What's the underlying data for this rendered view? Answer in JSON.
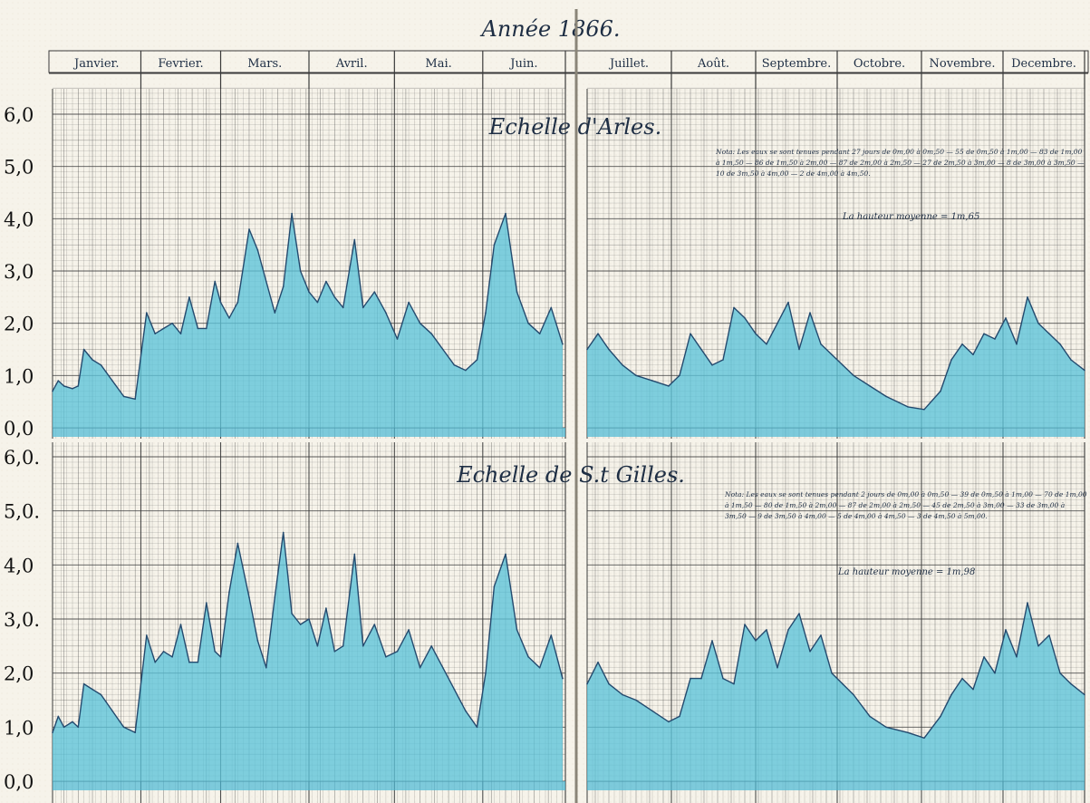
{
  "title": "Année 1866.",
  "months": [
    "Janvier.",
    "Fevrier.",
    "Mars.",
    "Avril.",
    "Mai.",
    "Juin.",
    "Juillet.",
    "Août.",
    "Septembre.",
    "Octobre.",
    "Novembre.",
    "Decembre."
  ],
  "colors": {
    "fill": "#5cc3d9",
    "line": "#244a6e",
    "grid": "#3a3a3a",
    "paper": "#f6f3ea",
    "zero_fill": "#4ab8d4"
  },
  "chart_data": [
    {
      "type": "area",
      "title": "Echelle d'Arles.",
      "y_ticks": [
        "0,0",
        "1,0",
        "2,0",
        "3,0",
        "4,0",
        "5,0",
        "6,0"
      ],
      "ylim": [
        0,
        6.6
      ],
      "x_unit": "day of year",
      "xlim": [
        1,
        365
      ],
      "x": [
        1,
        3,
        5,
        8,
        10,
        12,
        15,
        18,
        22,
        26,
        30,
        34,
        37,
        40,
        43,
        46,
        49,
        52,
        55,
        58,
        60,
        63,
        66,
        70,
        73,
        76,
        79,
        82,
        85,
        88,
        91,
        94,
        97,
        100,
        103,
        107,
        110,
        114,
        118,
        122,
        126,
        130,
        134,
        138,
        142,
        146,
        150,
        153,
        156,
        160,
        164,
        168,
        172,
        176,
        180,
        182,
        186,
        190,
        195,
        200,
        206,
        212,
        216,
        220,
        224,
        228,
        232,
        236,
        240,
        244,
        248,
        252,
        256,
        260,
        264,
        268,
        272,
        276,
        280,
        286,
        292,
        300,
        306,
        312,
        316,
        320,
        324,
        328,
        332,
        336,
        340,
        344,
        348,
        352,
        356,
        360,
        365
      ],
      "values": [
        0.7,
        0.9,
        0.8,
        0.75,
        0.8,
        1.5,
        1.3,
        1.2,
        0.9,
        0.6,
        0.55,
        2.2,
        1.8,
        1.9,
        2.0,
        1.8,
        2.5,
        1.9,
        1.9,
        2.8,
        2.4,
        2.1,
        2.4,
        3.8,
        3.4,
        2.8,
        2.2,
        2.7,
        4.1,
        3.0,
        2.6,
        2.4,
        2.8,
        2.5,
        2.3,
        3.6,
        2.3,
        2.6,
        2.2,
        1.7,
        2.4,
        2.0,
        1.8,
        1.5,
        1.2,
        1.1,
        1.3,
        2.2,
        3.5,
        4.1,
        2.6,
        2.0,
        1.8,
        2.3,
        1.6,
        1.5,
        1.8,
        1.5,
        1.2,
        1.0,
        0.9,
        0.8,
        1.0,
        1.8,
        1.5,
        1.2,
        1.3,
        2.3,
        2.1,
        1.8,
        1.6,
        2.0,
        2.4,
        1.5,
        2.2,
        1.6,
        1.4,
        1.2,
        1.0,
        0.8,
        0.6,
        0.4,
        0.35,
        0.7,
        1.3,
        1.6,
        1.4,
        1.8,
        1.7,
        2.1,
        1.6,
        2.5,
        2.0,
        1.8,
        1.6,
        1.3,
        1.1
      ]
    },
    {
      "type": "area",
      "title": "Echelle de S.t Gilles.",
      "y_ticks": [
        "0,0",
        "1,0",
        "2,0",
        "3,0.",
        "4,0",
        "5,0.",
        "6,0."
      ],
      "ylim": [
        0,
        6.6
      ],
      "x_unit": "day of year",
      "xlim": [
        1,
        365
      ],
      "x": [
        1,
        3,
        5,
        8,
        10,
        12,
        15,
        18,
        22,
        26,
        30,
        34,
        37,
        40,
        43,
        46,
        49,
        52,
        55,
        58,
        60,
        63,
        66,
        70,
        73,
        76,
        79,
        82,
        85,
        88,
        91,
        94,
        97,
        100,
        103,
        107,
        110,
        114,
        118,
        122,
        126,
        130,
        134,
        138,
        142,
        146,
        150,
        153,
        156,
        160,
        164,
        168,
        172,
        176,
        180,
        182,
        186,
        190,
        195,
        200,
        206,
        212,
        216,
        220,
        224,
        228,
        232,
        236,
        240,
        244,
        248,
        252,
        256,
        260,
        264,
        268,
        272,
        276,
        280,
        286,
        292,
        300,
        306,
        312,
        316,
        320,
        324,
        328,
        332,
        336,
        340,
        344,
        348,
        352,
        356,
        360,
        365
      ],
      "values": [
        0.9,
        1.2,
        1.0,
        1.1,
        1.0,
        1.8,
        1.7,
        1.6,
        1.3,
        1.0,
        0.9,
        2.7,
        2.2,
        2.4,
        2.3,
        2.9,
        2.2,
        2.2,
        3.3,
        2.4,
        2.3,
        3.5,
        4.4,
        3.4,
        2.6,
        2.1,
        3.4,
        4.6,
        3.1,
        2.9,
        3.0,
        2.5,
        3.2,
        2.4,
        2.5,
        4.2,
        2.5,
        2.9,
        2.3,
        2.4,
        2.8,
        2.1,
        2.5,
        2.1,
        1.7,
        1.3,
        1.0,
        2.0,
        3.6,
        4.2,
        2.8,
        2.3,
        2.1,
        2.7,
        1.9,
        1.8,
        2.2,
        1.8,
        1.6,
        1.5,
        1.3,
        1.1,
        1.2,
        1.9,
        1.9,
        2.6,
        1.9,
        1.8,
        2.9,
        2.6,
        2.8,
        2.1,
        2.8,
        3.1,
        2.4,
        2.7,
        2.0,
        1.8,
        1.6,
        1.2,
        1.0,
        0.9,
        0.8,
        1.2,
        1.6,
        1.9,
        1.7,
        2.3,
        2.0,
        2.8,
        2.3,
        3.3,
        2.5,
        2.7,
        2.0,
        1.8,
        1.6
      ]
    }
  ],
  "annotations": [
    {
      "text": "Nota: Les eaux se sont tenues pendant 27 jours de 0m,00 à 0m,50 — 55 de 0m,50 à 1m,00 — 83 de 1m,00 à 1m,50 — 86 de 1m,50 à 2m,00 — 87 de 2m,00 à 2m,50 — 27 de 2m,50 à 3m,00 — 8 de 3m,00 à 3m,50 — 10 de 3m,50 à 4m,00 — 2 de 4m,00 à 4m,50.",
      "chart": 0
    },
    {
      "text": "La hauteur moyenne = 1m,65",
      "chart": 0
    },
    {
      "text": "Nota: Les eaux se sont tenues pendant 2 jours de 0m,00 à 0m,50 — 39 de 0m,50 à 1m,00 — 70 de 1m,00 à 1m,50 — 80 de 1m,50 à 2m,00 — 87 de 2m,00 à 2m,50 — 45 de 2m,50 à 3m,00 — 33 de 3m,00 à 3m,50 — 9 de 3m,50 à 4m,00 — 5 de 4m,00 à 4m,50 — 3 de 4m,50 à 5m,00.",
      "chart": 1
    },
    {
      "text": "La hauteur moyenne = 1m,98",
      "chart": 1
    }
  ]
}
